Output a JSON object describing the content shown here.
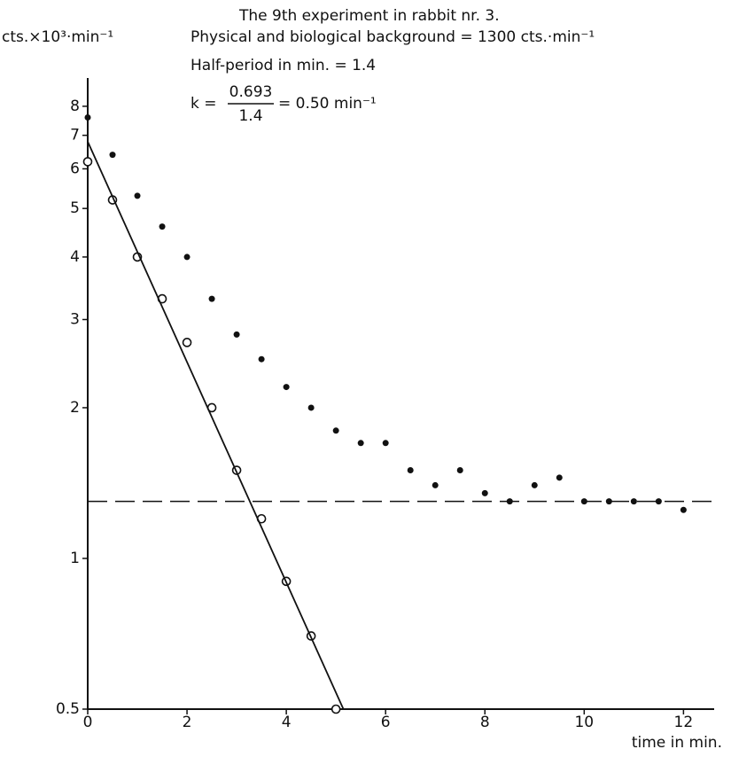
{
  "chart_data": {
    "type": "scatter",
    "title": "The 9th experiment in rabbit nr. 3.",
    "annotations": [
      "Physical and biological background = 1300 cts.·min⁻¹",
      "Half-period in min. = 1.4"
    ],
    "formula": {
      "lhs": "k =",
      "numerator": "0.693",
      "denominator": "1.4",
      "rhs": "= 0.50 min⁻¹"
    },
    "y_label": "cts.×10³·min⁻¹",
    "x_label": "time in min.",
    "xlim": [
      0,
      12.6
    ],
    "xticks": [
      0,
      2,
      4,
      6,
      8,
      10,
      12
    ],
    "ylim": [
      0.5,
      9
    ],
    "yticks": [
      0.5,
      1,
      2,
      3,
      4,
      5,
      6,
      7,
      8
    ],
    "y_log": true,
    "series": [
      {
        "marker": "dot",
        "color": "#111",
        "x": [
          0,
          0.5,
          1,
          1.5,
          2,
          2.5,
          3,
          3.5,
          4,
          4.5,
          5,
          5.5,
          6,
          6.5,
          7,
          7.5,
          8,
          8.5,
          9,
          9.5,
          10,
          10.5,
          11,
          11.5,
          12
        ],
        "values": [
          7.6,
          6.4,
          5.3,
          4.6,
          4.0,
          3.3,
          2.8,
          2.5,
          2.2,
          2.0,
          1.8,
          1.7,
          1.7,
          1.5,
          1.4,
          1.5,
          1.35,
          1.3,
          1.4,
          1.45,
          1.3,
          1.3,
          1.3,
          1.3,
          1.25
        ]
      },
      {
        "marker": "circle",
        "color": "#111",
        "x": [
          0,
          0.5,
          1,
          1.5,
          2,
          2.5,
          3,
          3.5,
          4,
          4.5,
          5
        ],
        "values": [
          6.2,
          5.2,
          4.0,
          3.3,
          2.7,
          2.0,
          1.5,
          1.2,
          0.9,
          0.7,
          0.5
        ]
      },
      {
        "marker": "line",
        "color": "#111",
        "x": [
          0,
          5.15
        ],
        "values": [
          6.8,
          0.5
        ]
      }
    ],
    "hline": {
      "value": 1.3,
      "style": "dashed",
      "color": "#111"
    }
  }
}
